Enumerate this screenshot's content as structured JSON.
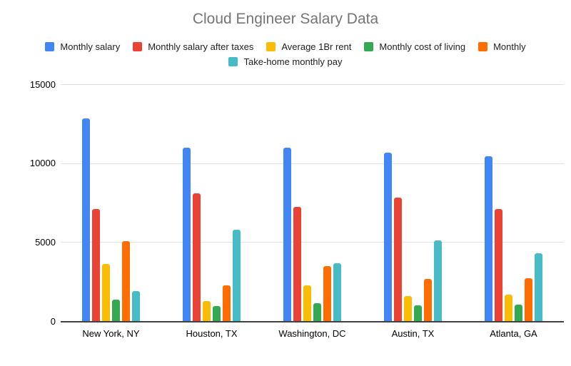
{
  "chart_data": {
    "type": "bar",
    "title": "Cloud Engineer Salary Data",
    "categories": [
      "New York, NY",
      "Houston, TX",
      "Washington, DC",
      "Austin, TX",
      "Atlanta, GA"
    ],
    "series": [
      {
        "name": "Monthly salary",
        "color": "#4285F4",
        "values": [
          12850,
          11000,
          11000,
          10650,
          10450
        ]
      },
      {
        "name": "Monthly salary after taxes",
        "color": "#EA4335",
        "values": [
          7100,
          8100,
          7250,
          7800,
          7100
        ]
      },
      {
        "name": "Average 1Br rent",
        "color": "#FBBC04",
        "values": [
          3600,
          1250,
          2250,
          1600,
          1650
        ]
      },
      {
        "name": "Monthly cost of living",
        "color": "#34A853",
        "values": [
          1350,
          950,
          1150,
          1000,
          1050
        ]
      },
      {
        "name": "Monthly",
        "color": "#FF6D01",
        "values": [
          5050,
          2250,
          3500,
          2650,
          2700
        ]
      },
      {
        "name": "Take-home monthly pay",
        "color": "#46BDC6",
        "values": [
          1900,
          5800,
          3650,
          5100,
          4300
        ]
      }
    ],
    "xlabel": "",
    "ylabel": "",
    "y_ticks": [
      0,
      5000,
      10000,
      15000
    ],
    "ylim": [
      0,
      15000
    ],
    "grid": true,
    "legend_position": "top",
    "colors": {
      "title_text": "#757575",
      "axis_text": "#000000",
      "gridline": "#e3e3e3",
      "axis_line": "#424242",
      "background": "#ffffff"
    }
  }
}
